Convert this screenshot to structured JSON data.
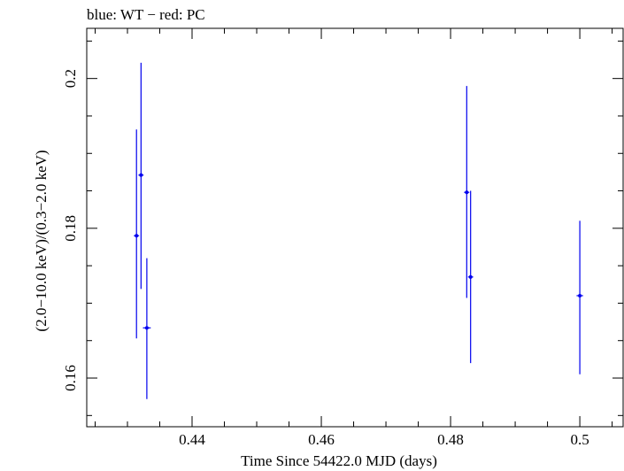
{
  "chart_data": {
    "type": "scatter",
    "title": "blue: WT − red: PC",
    "xlabel": "Time Since 54422.0 MJD (days)",
    "ylabel": "(2.0−10.0 keV)/(0.3−2.0 keV)",
    "xlim": [
      0.4237,
      0.5067
    ],
    "ylim": [
      0.1535,
      0.2067
    ],
    "x_ticks": [
      0.44,
      0.46,
      0.48,
      0.5
    ],
    "x_tick_labels": [
      "0.44",
      "0.46",
      "0.48",
      "0.5"
    ],
    "y_ticks": [
      0.16,
      0.18,
      0.2
    ],
    "y_tick_labels": [
      "0.16",
      "0.18",
      "0.2"
    ],
    "grid": false,
    "series": [
      {
        "name": "WT",
        "color": "#0000ee",
        "points": [
          {
            "x": 0.4314,
            "y": 0.179,
            "ylo": 0.1653,
            "yhi": 0.1932,
            "xerr": 0.0004
          },
          {
            "x": 0.4321,
            "y": 0.1871,
            "ylo": 0.1719,
            "yhi": 0.2021,
            "xerr": 0.0004
          },
          {
            "x": 0.433,
            "y": 0.1667,
            "ylo": 0.1572,
            "yhi": 0.176,
            "xerr": 0.0006
          },
          {
            "x": 0.4825,
            "y": 0.1848,
            "ylo": 0.1707,
            "yhi": 0.199,
            "xerr": 0.0004
          },
          {
            "x": 0.4831,
            "y": 0.1735,
            "ylo": 0.162,
            "yhi": 0.185,
            "xerr": 0.0004
          },
          {
            "x": 0.5,
            "y": 0.171,
            "ylo": 0.1605,
            "yhi": 0.181,
            "xerr": 0.0005
          }
        ]
      },
      {
        "name": "PC",
        "color": "#ee0000",
        "points": []
      }
    ]
  }
}
